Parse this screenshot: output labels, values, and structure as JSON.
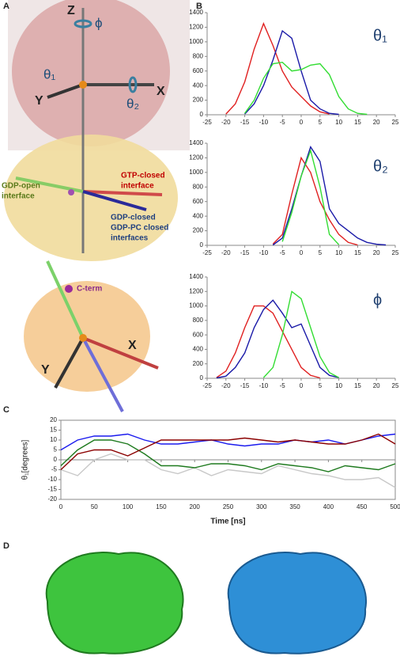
{
  "panel_labels": [
    "A",
    "B",
    "C",
    "D"
  ],
  "diagram_labels": {
    "z_axis": "Z",
    "phi": "ϕ",
    "theta1": "θ₁",
    "y_axis": "Y",
    "x_axis": "X",
    "theta2": "θ₂",
    "gtp_closed": [
      "GTP-closed",
      "interface"
    ],
    "gdp_open": [
      "GDP-open",
      "interface"
    ],
    "gdp_closed": [
      "GDP-closed",
      "GDP-PC closed",
      "interfaces"
    ],
    "c_term": "C-term",
    "x_axis_lower": "X",
    "y_axis_lower": "Y"
  },
  "chart_data": [
    {
      "type": "line",
      "title": "θ₁",
      "x": [
        -22.5,
        -20,
        -17.5,
        -15,
        -12.5,
        -10,
        -7.5,
        -5,
        -2.5,
        0,
        2.5,
        5,
        7.5,
        10,
        12.5,
        15,
        17.5,
        20,
        22.5
      ],
      "series": [
        {
          "color": "#e02020",
          "values": [
            null,
            10,
            150,
            450,
            900,
            1250,
            950,
            600,
            380,
            250,
            120,
            40,
            10,
            null,
            null,
            null,
            null,
            null,
            null
          ]
        },
        {
          "color": "#1a1aa8",
          "values": [
            null,
            null,
            null,
            10,
            150,
            400,
            750,
            1150,
            1050,
            600,
            200,
            80,
            20,
            5,
            null,
            null,
            null,
            null,
            null
          ]
        },
        {
          "color": "#33dd33",
          "values": [
            null,
            null,
            null,
            20,
            200,
            500,
            700,
            720,
            600,
            620,
            680,
            700,
            550,
            250,
            80,
            20,
            5,
            null,
            null
          ]
        }
      ],
      "xlim": [
        -25,
        25
      ],
      "xticks": [
        -25,
        -20,
        -15,
        -10,
        -5,
        0,
        5,
        10,
        15,
        20,
        25
      ],
      "ylim": [
        0,
        1400
      ],
      "yticks": [
        0,
        200,
        400,
        600,
        800,
        1000,
        1200,
        1400
      ]
    },
    {
      "type": "line",
      "title": "θ₂",
      "x": [
        -22.5,
        -20,
        -17.5,
        -15,
        -12.5,
        -10,
        -7.5,
        -5,
        -2.5,
        0,
        2.5,
        5,
        7.5,
        10,
        12.5,
        15,
        17.5,
        20,
        22.5
      ],
      "series": [
        {
          "color": "#e02020",
          "values": [
            null,
            null,
            null,
            null,
            null,
            null,
            20,
            150,
            700,
            1200,
            1000,
            600,
            350,
            150,
            40,
            5,
            null,
            null,
            null
          ]
        },
        {
          "color": "#1a1aa8",
          "values": [
            null,
            null,
            null,
            null,
            null,
            null,
            5,
            100,
            500,
            950,
            1350,
            1150,
            500,
            300,
            200,
            100,
            40,
            15,
            5
          ]
        },
        {
          "color": "#33dd33",
          "values": [
            null,
            null,
            null,
            null,
            null,
            null,
            null,
            50,
            450,
            950,
            1300,
            800,
            150,
            10,
            null,
            null,
            null,
            null,
            null
          ]
        }
      ],
      "xlim": [
        -25,
        25
      ],
      "xticks": [
        -25,
        -20,
        -15,
        -10,
        -5,
        0,
        5,
        10,
        15,
        20,
        25
      ],
      "ylim": [
        0,
        1400
      ],
      "yticks": [
        0,
        200,
        400,
        600,
        800,
        1000,
        1200,
        1400
      ]
    },
    {
      "type": "line",
      "title": "ϕ",
      "x": [
        -22.5,
        -20,
        -17.5,
        -15,
        -12.5,
        -10,
        -7.5,
        -5,
        -2.5,
        0,
        2.5,
        5,
        7.5,
        10,
        12.5,
        15,
        17.5,
        20,
        22.5
      ],
      "series": [
        {
          "color": "#e02020",
          "values": [
            10,
            100,
            350,
            700,
            1000,
            1000,
            900,
            650,
            400,
            150,
            40,
            5,
            null,
            null,
            null,
            null,
            null,
            null,
            null
          ]
        },
        {
          "color": "#1a1aa8",
          "values": [
            5,
            30,
            150,
            350,
            700,
            950,
            1080,
            900,
            700,
            750,
            450,
            150,
            40,
            10,
            null,
            null,
            null,
            null,
            null
          ]
        },
        {
          "color": "#33dd33",
          "values": [
            null,
            null,
            null,
            null,
            null,
            10,
            150,
            600,
            1200,
            1100,
            700,
            300,
            80,
            10,
            null,
            null,
            null,
            null,
            null
          ]
        }
      ],
      "xlim": [
        -25,
        25
      ],
      "xticks": [
        -25,
        -20,
        -15,
        -10,
        -5,
        0,
        5,
        10,
        15,
        20,
        25
      ],
      "ylim": [
        0,
        1400
      ],
      "yticks": [
        0,
        200,
        400,
        600,
        800,
        1000,
        1200,
        1400
      ]
    },
    {
      "type": "line",
      "x_label": "Time [ns]",
      "y_label": "θ₁[degrees]",
      "x": [
        0,
        25,
        50,
        75,
        100,
        125,
        150,
        175,
        200,
        225,
        250,
        275,
        300,
        325,
        350,
        375,
        400,
        425,
        450,
        475,
        500
      ],
      "series": [
        {
          "color": "#c8c8c8",
          "values": [
            -5,
            -8,
            0,
            3,
            0,
            0,
            -5,
            -7,
            -4,
            -8,
            -5,
            -6,
            -7,
            -3,
            -5,
            -7,
            -8,
            -10,
            -10,
            -9,
            -14
          ]
        },
        {
          "color": "#1a1aee",
          "values": [
            5,
            10,
            12,
            12,
            13,
            10,
            8,
            8,
            9,
            10,
            8,
            7,
            8,
            8,
            10,
            9,
            10,
            8,
            10,
            12,
            13
          ]
        },
        {
          "color": "#1e7a1e",
          "values": [
            -3,
            5,
            10,
            10,
            8,
            3,
            -3,
            -3,
            -4,
            -2,
            -2,
            -3,
            -5,
            -2,
            -3,
            -4,
            -6,
            -3,
            -4,
            -5,
            -2
          ]
        },
        {
          "color": "#8b0000",
          "values": [
            -5,
            3,
            5,
            5,
            2,
            6,
            10,
            10,
            10,
            10,
            10,
            11,
            10,
            9,
            10,
            9,
            8,
            8,
            10,
            13,
            8
          ]
        }
      ],
      "xlim": [
        0,
        500
      ],
      "xticks": [
        0,
        50,
        100,
        150,
        200,
        250,
        300,
        350,
        400,
        450,
        500
      ],
      "ylim": [
        -20,
        20
      ],
      "yticks": [
        -20,
        -15,
        -10,
        -5,
        0,
        5,
        10,
        15,
        20
      ]
    }
  ]
}
